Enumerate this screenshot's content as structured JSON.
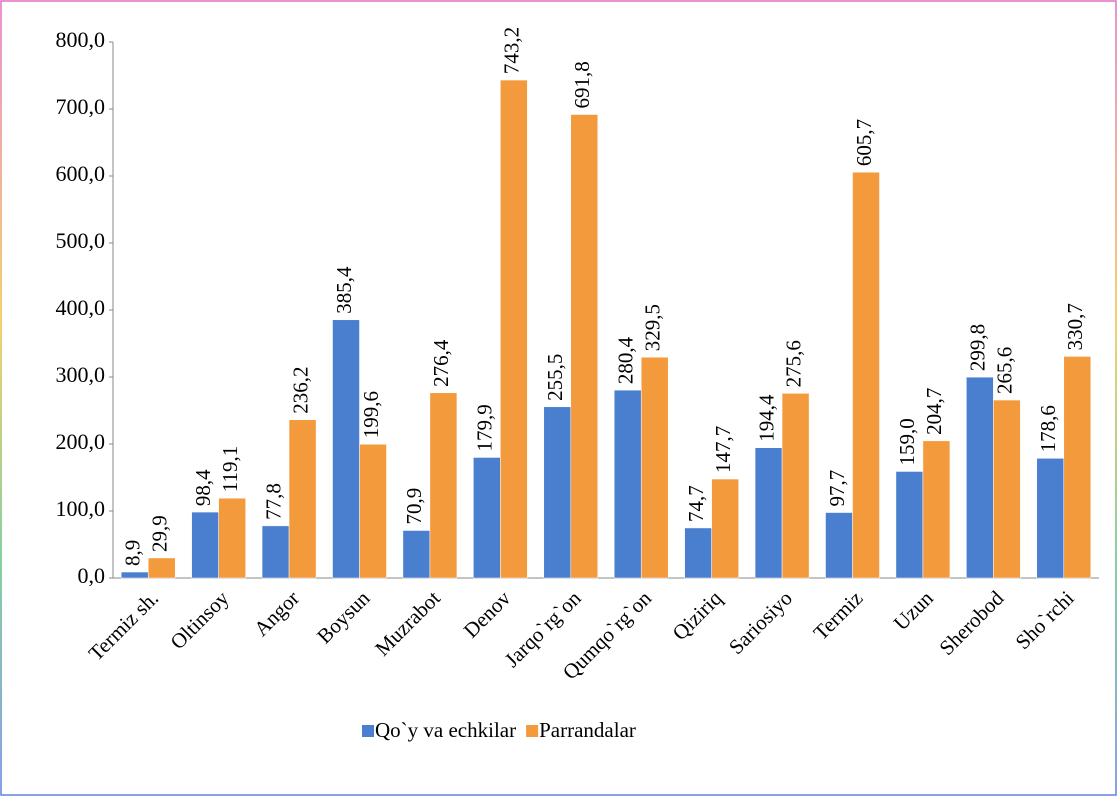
{
  "chart_data": {
    "type": "bar",
    "categories": [
      "Termiz sh.",
      "Oltinsoy",
      "Angor",
      "Boysun",
      "Muzrabot",
      "Denov",
      "Jarqo`rg`on",
      "Qumqo`rg`on",
      "Qiziriq",
      "Sariosiyo",
      "Termiz",
      "Uzun",
      "Sherobod",
      "Sho`rchi"
    ],
    "series": [
      {
        "name": "Qo`y va echkilar",
        "color": "#4a7fd0",
        "values": [
          8.9,
          98.4,
          77.8,
          385.4,
          70.9,
          179.9,
          255.5,
          280.4,
          74.7,
          194.4,
          97.7,
          159.0,
          299.8,
          178.6
        ],
        "value_labels": [
          "8,9",
          "98,4",
          "77,8",
          "385,4",
          "70,9",
          "179,9",
          "255,5",
          "280,4",
          "74,7",
          "194,4",
          "97,7",
          "159,0",
          "299,8",
          "178,6"
        ]
      },
      {
        "name": "Parrandalar",
        "color": "#f39a3c",
        "values": [
          29.9,
          119.1,
          236.2,
          199.6,
          276.4,
          743.2,
          691.8,
          329.5,
          147.7,
          275.6,
          605.7,
          204.7,
          265.6,
          330.7
        ],
        "value_labels": [
          "29,9",
          "119,1",
          "236,2",
          "199,6",
          "276,4",
          "743,2",
          "691,8",
          "329,5",
          "147,7",
          "275,6",
          "605,7",
          "204,7",
          "265,6",
          "330,7"
        ]
      }
    ],
    "ylim": [
      0,
      800
    ],
    "yticks": [
      {
        "value": 0,
        "label": "0,0"
      },
      {
        "value": 100,
        "label": "100,0"
      },
      {
        "value": 200,
        "label": "200,0"
      },
      {
        "value": 300,
        "label": "300,0"
      },
      {
        "value": 400,
        "label": "400,0"
      },
      {
        "value": 500,
        "label": "500,0"
      },
      {
        "value": 600,
        "label": "600,0"
      },
      {
        "value": 700,
        "label": "700,0"
      },
      {
        "value": 800,
        "label": "800,0"
      }
    ],
    "grid": false,
    "legend": "bottom"
  }
}
